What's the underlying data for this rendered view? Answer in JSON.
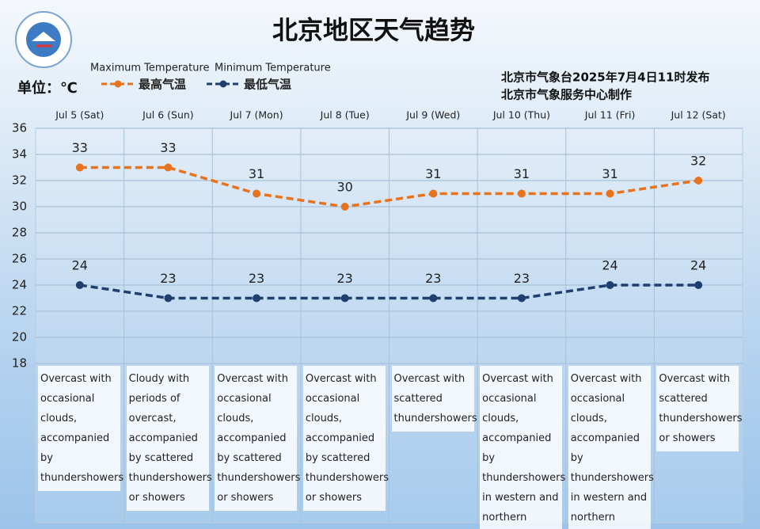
{
  "chart_data": {
    "type": "line",
    "title": "北京地区天气趋势",
    "unit_label": "单位：℃",
    "publisher": [
      "北京市气象台2025年7月4日11时发布",
      "北京市气象服务中心制作"
    ],
    "categories": [
      "Jul 5 (Sat)",
      "Jul 6 (Sun)",
      "Jul 7 (Mon)",
      "Jul 8 (Tue)",
      "Jul 9 (Wed)",
      "Jul 10 (Thu)",
      "Jul 11 (Fri)",
      "Jul 12 (Sat)"
    ],
    "series": [
      {
        "name": "最高气温",
        "name_en": "Maximum  Temperature",
        "color": "#e8731f",
        "values": [
          33,
          33,
          31,
          30,
          31,
          31,
          31,
          32
        ]
      },
      {
        "name": "最低气温",
        "name_en": "Minimum Temperature",
        "color": "#1f3f6e",
        "values": [
          24,
          23,
          23,
          23,
          23,
          23,
          24,
          24
        ]
      }
    ],
    "descriptions": [
      "Overcast with occasional clouds, accompanied by thundershowers",
      "Cloudy with periods of overcast, accompanied by scattered thundershowers or showers",
      "Overcast with occasional clouds, accompanied by scattered thundershowers or showers",
      "Overcast with occasional clouds, accompanied by scattered thundershowers or showers",
      "Overcast with scattered thundershowers",
      "Overcast with occasional clouds, accompanied by thundershowers in western and northern regions",
      "Overcast with occasional clouds, accompanied by thundershowers in western and northern regions",
      "Overcast with scattered thundershowers or showers"
    ],
    "ylim": [
      18,
      36
    ],
    "yticks": [
      18,
      20,
      22,
      24,
      26,
      28,
      30,
      32,
      34,
      36
    ],
    "grid": true
  }
}
